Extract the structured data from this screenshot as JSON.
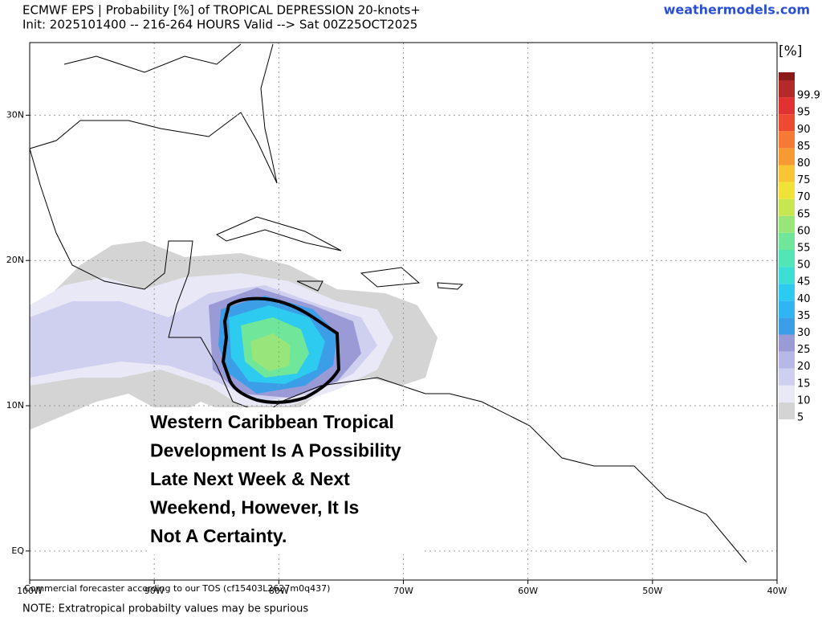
{
  "header": {
    "title": "ECMWF EPS | Probability [%] of TROPICAL DEPRESSION 20-knots+",
    "subtitle": "Init: 2025101400 -- 216-264 HOURS Valid --> Sat 00Z25OCT2025",
    "site": "weathermodels.com"
  },
  "map": {
    "lat_ticks": [
      {
        "value": 30,
        "label": "30N"
      },
      {
        "value": 20,
        "label": "20N"
      },
      {
        "value": 10,
        "label": "10N"
      },
      {
        "value": 0,
        "label": "EQ"
      }
    ],
    "lon_ticks": [
      {
        "value": 100,
        "label": "100W"
      },
      {
        "value": 90,
        "label": "90W"
      },
      {
        "value": 80,
        "label": "80W"
      },
      {
        "value": 70,
        "label": "70W"
      },
      {
        "value": 60,
        "label": "60W"
      },
      {
        "value": 50,
        "label": "50W"
      },
      {
        "value": 40,
        "label": "40W"
      }
    ],
    "lon_range": [
      100,
      40
    ],
    "lat_range": [
      35,
      -2
    ],
    "license": "Commercial forecaster according to our TOS (cf15403L2627m0q437)"
  },
  "colorbar": {
    "unit": "[%]",
    "levels": [
      5,
      10,
      15,
      20,
      25,
      30,
      35,
      40,
      45,
      50,
      55,
      60,
      65,
      70,
      75,
      80,
      85,
      90,
      95,
      99.9
    ],
    "colors": [
      "#d4d4d4",
      "#e8e8f6",
      "#cfcff0",
      "#b8b8e6",
      "#9a9ad6",
      "#3c9ee6",
      "#2fb6f2",
      "#2dcbef",
      "#3ddfd4",
      "#52e6b6",
      "#70e69a",
      "#98e67a",
      "#c8e652",
      "#f0e236",
      "#f8c634",
      "#f89a34",
      "#f67a34",
      "#ee4a32",
      "#e03232",
      "#b42a2a"
    ]
  },
  "annotation": {
    "lines": [
      "Western Caribbean Tropical",
      "Development Is A Possibility",
      "Late Next Week & Next",
      "Weekend, However, It Is",
      "Not A Certainty."
    ]
  },
  "footer": {
    "note": "NOTE: Extratropical probabilty values may be spurious"
  }
}
